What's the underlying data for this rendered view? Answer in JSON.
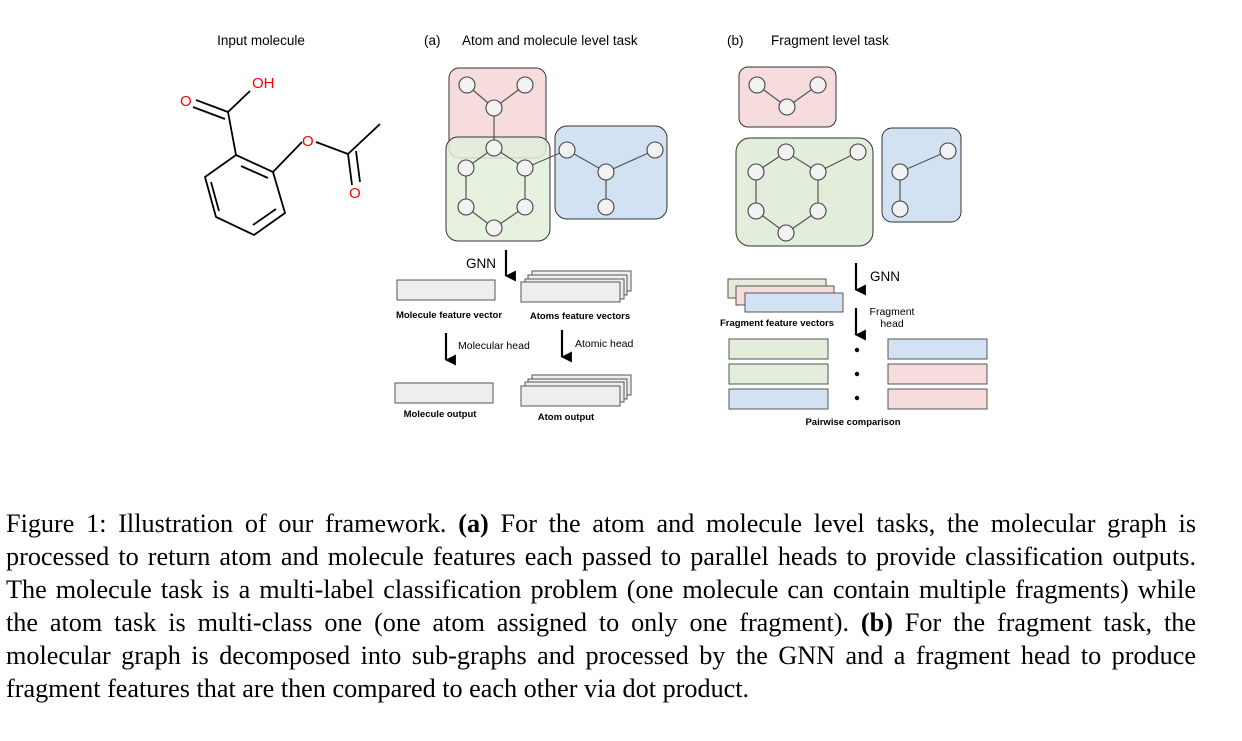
{
  "figure": {
    "panel_input": {
      "title": "Input molecule"
    },
    "panel_a": {
      "tag": "(a)",
      "title": "Atom and molecule level task",
      "gnn_label": "GNN",
      "molecule_feature_label": "Molecule feature vector",
      "atoms_feature_label": "Atoms feature vectors",
      "molecular_head_label": "Molecular head",
      "atomic_head_label": "Atomic head",
      "molecule_output_label": "Molecule output",
      "atom_output_label": "Atom output"
    },
    "panel_b": {
      "tag": "(b)",
      "title": "Fragment level task",
      "gnn_label": "GNN",
      "fragment_feature_label": "Fragment feature vectors",
      "fragment_head_line1": "Fragment",
      "fragment_head_line2": "head",
      "pairwise_label": "Pairwise comparison"
    },
    "molecule_atoms": {
      "oh": "OH",
      "o_carbonyl": "O",
      "o_ester": "O",
      "o_acetyl": "O"
    },
    "colors": {
      "pink_fill": "#f6dcdc",
      "green_fill": "#e2eedb",
      "blue_fill": "#d3e2f2",
      "gray_fill": "#eeeeee",
      "heteroatom": "#ff0000"
    }
  },
  "caption": {
    "label": "Figure 1: Illustration of our framework.",
    "a_tag": "(a)",
    "a_text": "For the atom and molecule level tasks, the molecular graph is processed to return atom and molecule features each passed to parallel heads to provide classification outputs. The molecule task is a multi-label classification problem (one molecule can contain multiple fragments) while the atom task is multi-class one (one atom assigned to only one fragment).",
    "b_tag": "(b)",
    "b_text": "For the fragment task, the molecular graph is decomposed into sub-graphs and processed by the GNN and a fragment head to produce fragment features that are then compared to each other via dot product."
  }
}
